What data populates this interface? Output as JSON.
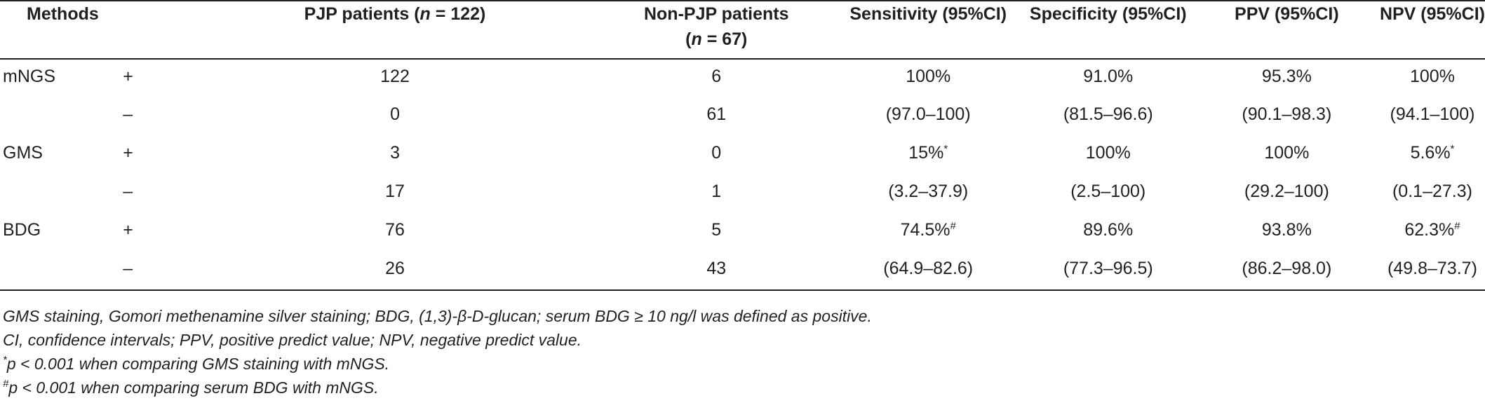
{
  "table": {
    "headers": {
      "methods": "Methods",
      "pjp_prefix": "PJP patients (",
      "pjp_n": "n",
      "pjp_suffix": " = 122)",
      "nonpjp_line1": "Non-PJP patients",
      "nonpjp_prefix": "(",
      "nonpjp_n": "n",
      "nonpjp_suffix": " = 67)",
      "sensitivity": "Sensitivity (95%CI)",
      "specificity": "Specificity (95%CI)",
      "ppv": "PPV (95%CI)",
      "npv": "NPV (95%CI)"
    },
    "rows": [
      {
        "method": "mNGS",
        "sign": "+",
        "pjp": "122",
        "nonpjp": "6",
        "sens": "100%",
        "sens_mark": "",
        "spec": "91.0%",
        "spec_mark": "",
        "ppv": "95.3%",
        "ppv_mark": "",
        "npv": "100%",
        "npv_mark": ""
      },
      {
        "method": "",
        "sign": "–",
        "pjp": "0",
        "nonpjp": "61",
        "sens": "(97.0–100)",
        "sens_mark": "",
        "spec": "(81.5–96.6)",
        "spec_mark": "",
        "ppv": "(90.1–98.3)",
        "ppv_mark": "",
        "npv": "(94.1–100)",
        "npv_mark": ""
      },
      {
        "method": "GMS",
        "sign": "+",
        "pjp": "3",
        "nonpjp": "0",
        "sens": "15%",
        "sens_mark": "*",
        "spec": "100%",
        "spec_mark": "",
        "ppv": "100%",
        "ppv_mark": "",
        "npv": "5.6%",
        "npv_mark": "*"
      },
      {
        "method": "",
        "sign": "–",
        "pjp": "17",
        "nonpjp": "1",
        "sens": "(3.2–37.9)",
        "sens_mark": "",
        "spec": "(2.5–100)",
        "spec_mark": "",
        "ppv": "(29.2–100)",
        "ppv_mark": "",
        "npv": "(0.1–27.3)",
        "npv_mark": ""
      },
      {
        "method": "BDG",
        "sign": "+",
        "pjp": "76",
        "nonpjp": "5",
        "sens": "74.5%",
        "sens_mark": "#",
        "spec": "89.6%",
        "spec_mark": "",
        "ppv": "93.8%",
        "ppv_mark": "",
        "npv": "62.3%",
        "npv_mark": "#"
      },
      {
        "method": "",
        "sign": "–",
        "pjp": "26",
        "nonpjp": "43",
        "sens": "(64.9–82.6)",
        "sens_mark": "",
        "spec": "(77.3–96.5)",
        "spec_mark": "",
        "ppv": "(86.2–98.0)",
        "ppv_mark": "",
        "npv": "(49.8–73.7)",
        "npv_mark": ""
      }
    ]
  },
  "footnotes": {
    "line1": "GMS staining, Gomori methenamine silver staining; BDG, (1,3)-β-D-glucan; serum BDG ≥ 10 ng/l was defined as positive.",
    "line2": "CI, confidence intervals; PPV, positive predict value; NPV, negative predict value.",
    "line3_mark": "*",
    "line3": "p < 0.001 when comparing GMS staining with mNGS.",
    "line4_mark": "#",
    "line4": "p < 0.001 when comparing serum BDG with mNGS."
  }
}
